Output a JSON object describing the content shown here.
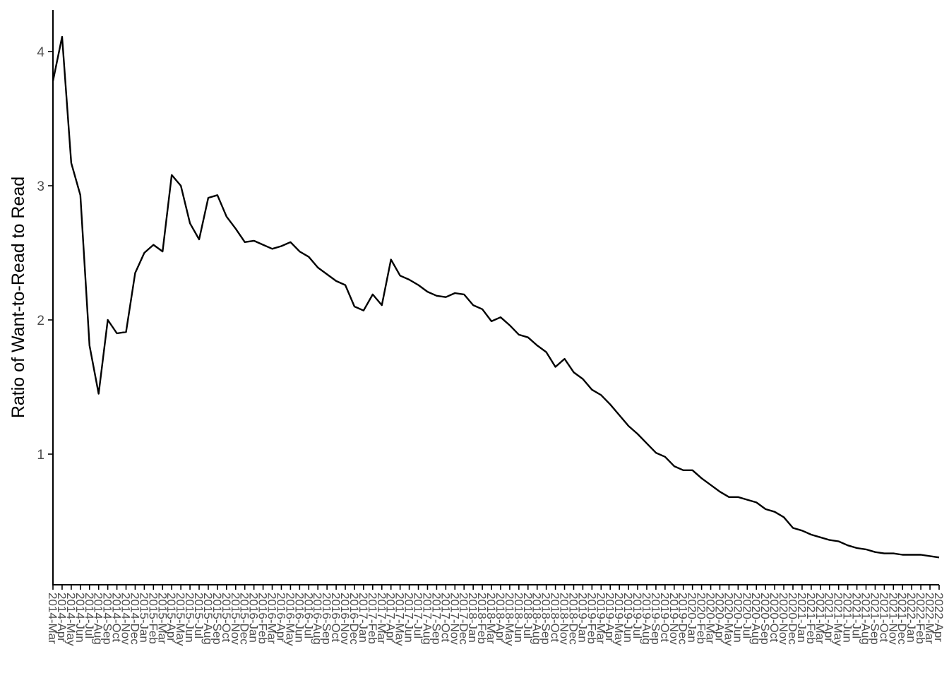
{
  "chart_data": {
    "type": "line",
    "title": "",
    "xlabel": "",
    "ylabel": "Ratio of Want-to-Read to Read",
    "ylim": [
      0.1,
      4.3
    ],
    "y_ticks": [
      1,
      2,
      3,
      4
    ],
    "grid": false,
    "x_tick_labels_rotated": true,
    "x": [
      "2014-Mar",
      "2014-Apr",
      "2014-May",
      "2014-Jun",
      "2014-Jul",
      "2014-Aug",
      "2014-Sep",
      "2014-Oct",
      "2014-Nov",
      "2014-Dec",
      "2015-Jan",
      "2015-Feb",
      "2015-Mar",
      "2015-Apr",
      "2015-May",
      "2015-Jun",
      "2015-Jul",
      "2015-Aug",
      "2015-Sep",
      "2015-Oct",
      "2015-Nov",
      "2015-Dec",
      "2016-Jan",
      "2016-Feb",
      "2016-Mar",
      "2016-Apr",
      "2016-May",
      "2016-Jun",
      "2016-Jul",
      "2016-Aug",
      "2016-Sep",
      "2016-Oct",
      "2016-Nov",
      "2016-Dec",
      "2017-Jan",
      "2017-Feb",
      "2017-Mar",
      "2017-Apr",
      "2017-May",
      "2017-Jun",
      "2017-Jul",
      "2017-Aug",
      "2017-Sep",
      "2017-Oct",
      "2017-Nov",
      "2017-Dec",
      "2018-Jan",
      "2018-Feb",
      "2018-Mar",
      "2018-Apr",
      "2018-May",
      "2018-Jun",
      "2018-Jul",
      "2018-Aug",
      "2018-Sep",
      "2018-Oct",
      "2018-Nov",
      "2018-Dec",
      "2019-Jan",
      "2019-Feb",
      "2019-Mar",
      "2019-Apr",
      "2019-May",
      "2019-Jun",
      "2019-Jul",
      "2019-Aug",
      "2019-Sep",
      "2019-Oct",
      "2019-Nov",
      "2019-Dec",
      "2020-Jan",
      "2020-Feb",
      "2020-Mar",
      "2020-Apr",
      "2020-May",
      "2020-Jun",
      "2020-Jul",
      "2020-Aug",
      "2020-Sep",
      "2020-Oct",
      "2020-Nov",
      "2020-Dec",
      "2021-Jan",
      "2021-Feb",
      "2021-Mar",
      "2021-Apr",
      "2021-May",
      "2021-Jun",
      "2021-Jul",
      "2021-Aug",
      "2021-Sep",
      "2021-Oct",
      "2021-Nov",
      "2021-Dec",
      "2022-Jan",
      "2022-Feb",
      "2022-Mar",
      "2022-Apr"
    ],
    "series": [
      {
        "values": [
          3.78,
          4.11,
          3.17,
          2.93,
          1.81,
          1.45,
          2.0,
          1.9,
          1.91,
          2.35,
          2.5,
          2.56,
          2.51,
          3.08,
          3.0,
          2.72,
          2.6,
          2.91,
          2.93,
          2.77,
          2.68,
          2.58,
          2.59,
          2.56,
          2.53,
          2.55,
          2.58,
          2.51,
          2.47,
          2.39,
          2.34,
          2.29,
          2.26,
          2.1,
          2.07,
          2.19,
          2.11,
          2.45,
          2.33,
          2.3,
          2.26,
          2.21,
          2.18,
          2.17,
          2.2,
          2.19,
          2.11,
          2.08,
          1.99,
          2.02,
          1.96,
          1.89,
          1.87,
          1.81,
          1.76,
          1.65,
          1.71,
          1.61,
          1.56,
          1.48,
          1.44,
          1.37,
          1.29,
          1.21,
          1.15,
          1.08,
          1.01,
          0.98,
          0.91,
          0.88,
          0.88,
          0.82,
          0.77,
          0.72,
          0.68,
          0.68,
          0.66,
          0.64,
          0.59,
          0.57,
          0.53,
          0.45,
          0.43,
          0.4,
          0.38,
          0.36,
          0.35,
          0.32,
          0.3,
          0.29,
          0.27,
          0.26,
          0.26,
          0.25,
          0.25,
          0.25,
          0.24,
          0.23
        ],
        "color": "#000000"
      }
    ]
  }
}
